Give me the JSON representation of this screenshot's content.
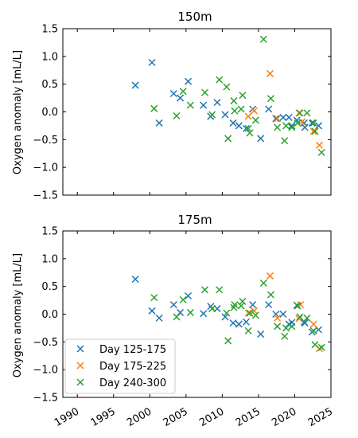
{
  "chart_data": [
    {
      "type": "scatter",
      "title": "150m",
      "ylabel": "Oxygen anomaly [mL/L]",
      "xlim": [
        1988,
        2025
      ],
      "ylim": [
        -1.5,
        1.5
      ],
      "yticks": [
        "1.5",
        "1.0",
        "0.5",
        "0.0",
        "−0.5",
        "−1.0",
        "−1.5"
      ],
      "ytick_values": [
        1.5,
        1.0,
        0.5,
        0.0,
        -0.5,
        -1.0,
        -1.5
      ],
      "xtick_values": [
        1990,
        1995,
        2000,
        2005,
        2010,
        2015,
        2020,
        2025
      ],
      "series": [
        {
          "color": "#1f77b4",
          "points": [
            [
              1998.0,
              0.48
            ],
            [
              2000.3,
              0.89
            ],
            [
              2001.3,
              -0.2
            ],
            [
              2003.3,
              0.33
            ],
            [
              2004.2,
              0.25
            ],
            [
              2005.3,
              0.55
            ],
            [
              2007.4,
              0.12
            ],
            [
              2008.4,
              -0.08
            ],
            [
              2009.3,
              0.17
            ],
            [
              2010.4,
              -0.05
            ],
            [
              2011.5,
              -0.2
            ],
            [
              2012.3,
              -0.25
            ],
            [
              2013.3,
              -0.3
            ],
            [
              2014.2,
              0.05
            ],
            [
              2015.3,
              -0.48
            ],
            [
              2016.4,
              0.05
            ],
            [
              2017.4,
              -0.12
            ],
            [
              2018.4,
              -0.1
            ],
            [
              2019.2,
              -0.1
            ],
            [
              2019.6,
              -0.25
            ],
            [
              2020.3,
              -0.15
            ],
            [
              2021.3,
              -0.2
            ],
            [
              2021.4,
              -0.28
            ],
            [
              2022.4,
              -0.2
            ],
            [
              2023.3,
              -0.25
            ]
          ]
        },
        {
          "color": "#ff7f0e",
          "points": [
            [
              2013.6,
              -0.08
            ],
            [
              2014.4,
              0.02
            ],
            [
              2016.6,
              0.69
            ],
            [
              2017.6,
              -0.12
            ],
            [
              2020.6,
              -0.02
            ],
            [
              2021.0,
              -0.18
            ],
            [
              2022.6,
              -0.35
            ],
            [
              2023.4,
              -0.6
            ]
          ]
        },
        {
          "color": "#2ca02c",
          "points": [
            [
              2000.6,
              0.06
            ],
            [
              2003.7,
              -0.07
            ],
            [
              2004.6,
              0.37
            ],
            [
              2005.6,
              0.12
            ],
            [
              2007.6,
              0.35
            ],
            [
              2008.6,
              -0.05
            ],
            [
              2009.6,
              0.58
            ],
            [
              2010.6,
              0.45
            ],
            [
              2010.8,
              -0.48
            ],
            [
              2011.6,
              0.2
            ],
            [
              2011.7,
              0.02
            ],
            [
              2012.6,
              0.05
            ],
            [
              2012.8,
              0.3
            ],
            [
              2013.6,
              -0.3
            ],
            [
              2013.8,
              -0.38
            ],
            [
              2014.6,
              -0.15
            ],
            [
              2015.7,
              1.31
            ],
            [
              2016.7,
              0.24
            ],
            [
              2017.6,
              -0.28
            ],
            [
              2018.6,
              -0.52
            ],
            [
              2018.8,
              -0.25
            ],
            [
              2019.6,
              -0.28
            ],
            [
              2020.4,
              -0.2
            ],
            [
              2020.7,
              -0.02
            ],
            [
              2021.7,
              -0.02
            ],
            [
              2022.6,
              -0.2
            ],
            [
              2022.8,
              -0.35
            ],
            [
              2023.7,
              -0.73
            ]
          ]
        }
      ]
    },
    {
      "type": "scatter",
      "title": "175m",
      "ylabel": "Oxygen anomaly [mL/L]",
      "xlim": [
        1988,
        2025
      ],
      "ylim": [
        -1.5,
        1.5
      ],
      "yticks": [
        "1.5",
        "1.0",
        "0.5",
        "0.0",
        "−0.5",
        "−1.0",
        "−1.5"
      ],
      "ytick_values": [
        1.5,
        1.0,
        0.5,
        0.0,
        -0.5,
        -1.0,
        -1.5
      ],
      "xticks": [
        "1990",
        "1995",
        "2000",
        "2005",
        "2010",
        "2015",
        "2020",
        "2025"
      ],
      "xtick_values": [
        1990,
        1995,
        2000,
        2005,
        2010,
        2015,
        2020,
        2025
      ],
      "legend": {
        "position": "lower left",
        "labels": [
          "Day 125-175",
          "Day 175-225",
          "Day 240-300"
        ]
      },
      "series": [
        {
          "name": "Day 125-175",
          "color": "#1f77b4",
          "points": [
            [
              1998.0,
              0.63
            ],
            [
              2000.3,
              0.06
            ],
            [
              2001.3,
              -0.07
            ],
            [
              2003.3,
              0.17
            ],
            [
              2004.2,
              0.03
            ],
            [
              2005.3,
              0.33
            ],
            [
              2007.4,
              0.01
            ],
            [
              2008.4,
              0.14
            ],
            [
              2009.3,
              0.1
            ],
            [
              2010.4,
              -0.05
            ],
            [
              2011.5,
              -0.16
            ],
            [
              2012.3,
              -0.18
            ],
            [
              2013.3,
              -0.14
            ],
            [
              2014.2,
              0.17
            ],
            [
              2015.3,
              -0.36
            ],
            [
              2016.4,
              0.17
            ],
            [
              2017.4,
              0.0
            ],
            [
              2018.4,
              0.0
            ],
            [
              2019.2,
              -0.18
            ],
            [
              2019.6,
              -0.15
            ],
            [
              2020.3,
              0.16
            ],
            [
              2021.3,
              -0.14
            ],
            [
              2021.4,
              -0.16
            ],
            [
              2022.4,
              -0.32
            ],
            [
              2023.3,
              -0.28
            ]
          ]
        },
        {
          "name": "Day 175-225",
          "color": "#ff7f0e",
          "points": [
            [
              2013.6,
              0.02
            ],
            [
              2014.4,
              0.06
            ],
            [
              2016.6,
              0.69
            ],
            [
              2017.6,
              -0.07
            ],
            [
              2020.6,
              -0.08
            ],
            [
              2020.8,
              0.17
            ],
            [
              2022.6,
              -0.18
            ],
            [
              2023.4,
              -0.62
            ]
          ]
        },
        {
          "name": "Day 240-300",
          "color": "#2ca02c",
          "points": [
            [
              2000.6,
              0.3
            ],
            [
              2003.7,
              -0.05
            ],
            [
              2004.6,
              0.26
            ],
            [
              2005.6,
              0.03
            ],
            [
              2007.6,
              0.44
            ],
            [
              2008.6,
              0.1
            ],
            [
              2009.6,
              0.44
            ],
            [
              2010.6,
              0.02
            ],
            [
              2010.8,
              -0.48
            ],
            [
              2011.6,
              0.12
            ],
            [
              2011.7,
              0.17
            ],
            [
              2012.6,
              0.15
            ],
            [
              2012.8,
              0.23
            ],
            [
              2013.6,
              -0.3
            ],
            [
              2013.8,
              0.02
            ],
            [
              2014.6,
              -0.02
            ],
            [
              2015.7,
              0.56
            ],
            [
              2016.7,
              0.35
            ],
            [
              2017.6,
              -0.22
            ],
            [
              2018.6,
              -0.4
            ],
            [
              2018.8,
              -0.25
            ],
            [
              2019.6,
              -0.22
            ],
            [
              2020.4,
              0.15
            ],
            [
              2020.7,
              -0.05
            ],
            [
              2021.7,
              -0.07
            ],
            [
              2022.6,
              -0.3
            ],
            [
              2022.8,
              -0.55
            ],
            [
              2023.7,
              -0.6
            ]
          ]
        }
      ]
    }
  ]
}
